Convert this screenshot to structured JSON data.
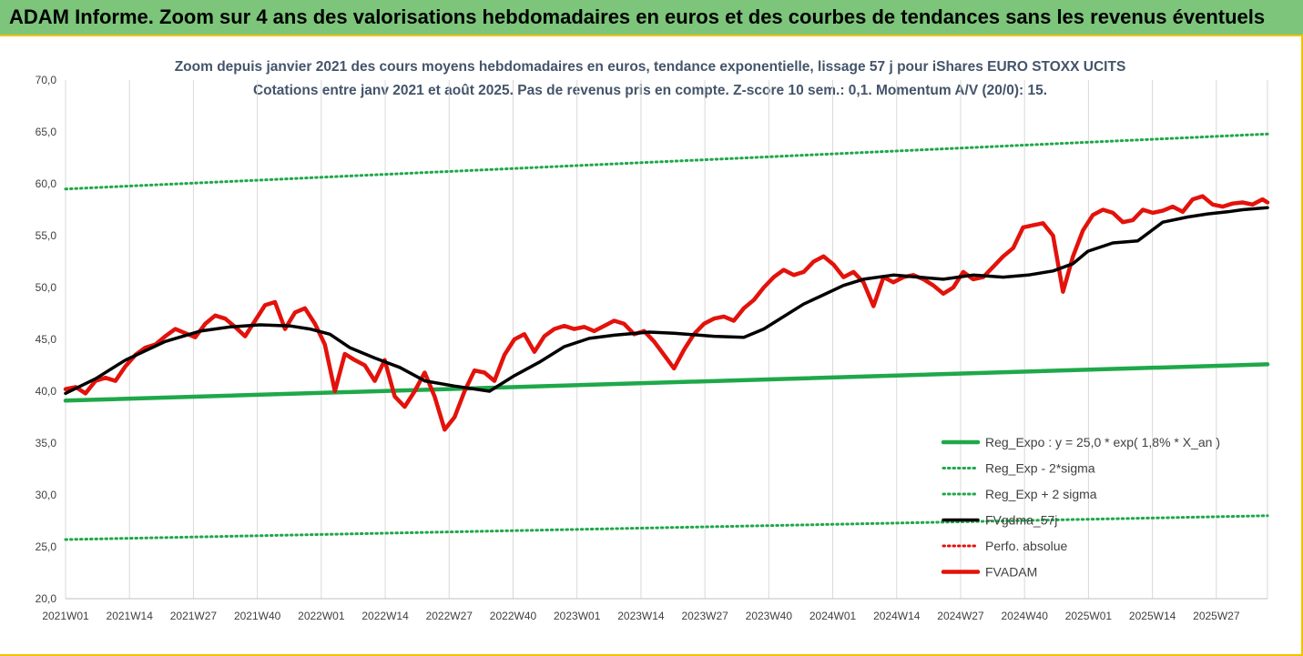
{
  "banner": {
    "title": "ADAM Informe. Zoom sur 4 ans des valorisations hebdomadaires en euros et des courbes de tendances sans les revenus éventuels"
  },
  "colors": {
    "banner_bg": "#7cc57a",
    "frame_border": "#f2c200",
    "reg_expo": "#1fa84a",
    "sigma_bands": "#1fa84a",
    "fvadam": "#e3120b",
    "fvgdma": "#000000",
    "perfo": "#e3120b"
  },
  "chart_data": {
    "type": "line",
    "title": "Zoom depuis janvier 2021 des cours moyens hebdomadaires en euros, tendance exponentielle, lissage 57 j pour iShares EURO STOXX UCITS",
    "subtitle": "Cotations entre janv 2021 et août 2025. Pas de revenus pris en compte. Z-score 10 sem.: 0,1. Momentum A/V (20/0): 15.",
    "xlabel": "",
    "ylabel": "",
    "ylim": [
      20,
      70
    ],
    "yticks": [
      "20,0",
      "25,0",
      "30,0",
      "35,0",
      "40,0",
      "45,0",
      "50,0",
      "55,0",
      "60,0",
      "65,0",
      "70,0"
    ],
    "xticks": [
      "2021W01",
      "2021W14",
      "2021W27",
      "2021W40",
      "2022W01",
      "2022W14",
      "2022W27",
      "2022W40",
      "2023W01",
      "2023W14",
      "2023W27",
      "2023W40",
      "2024W01",
      "2024W14",
      "2024W27",
      "2024W40",
      "2025W01",
      "2025W14",
      "2025W27"
    ],
    "x_week_range": [
      0,
      241
    ],
    "grid": "vertical",
    "legend_position": "bottom-right",
    "series": [
      {
        "name": "Reg_Expo : y = 25,0 * exp( 1,8% *  X_an )",
        "style": "solid",
        "x": [
          0,
          241
        ],
        "values": [
          39.1,
          42.6
        ]
      },
      {
        "name": "Reg_Exp - 2*sigma",
        "style": "dotted",
        "x": [
          0,
          241
        ],
        "values": [
          25.7,
          28.0
        ]
      },
      {
        "name": "Reg_Exp + 2 sigma",
        "style": "dotted",
        "x": [
          0,
          241
        ],
        "values": [
          59.5,
          64.8
        ]
      },
      {
        "name": "FVgdma_57j",
        "style": "solid",
        "x": [
          0,
          6,
          12,
          20,
          27,
          33,
          39,
          45,
          49,
          53,
          57,
          62,
          67,
          72,
          78,
          85,
          90,
          95,
          100,
          105,
          110,
          117,
          122,
          130,
          136,
          140,
          144,
          148,
          152,
          156,
          160,
          166,
          171,
          176,
          182,
          188,
          193,
          198,
          202,
          205,
          210,
          215,
          220,
          225,
          229,
          233,
          236,
          241
        ],
        "values": [
          39.8,
          41.2,
          43.0,
          44.8,
          45.8,
          46.2,
          46.4,
          46.3,
          46.0,
          45.5,
          44.2,
          43.2,
          42.3,
          41.0,
          40.5,
          40.0,
          41.5,
          42.8,
          44.3,
          45.1,
          45.4,
          45.7,
          45.6,
          45.3,
          45.2,
          46.0,
          47.2,
          48.4,
          49.3,
          50.2,
          50.8,
          51.2,
          51.0,
          50.8,
          51.2,
          51.0,
          51.2,
          51.6,
          52.3,
          53.5,
          54.3,
          54.5,
          56.3,
          56.8,
          57.1,
          57.3,
          57.5,
          57.7
        ]
      },
      {
        "name": "Perfo. absolue",
        "style": "dotted",
        "x": [],
        "values": []
      },
      {
        "name": "FVADAM",
        "style": "solid",
        "x": [
          0,
          2,
          4,
          6,
          8,
          10,
          12,
          14,
          16,
          18,
          20,
          22,
          24,
          26,
          28,
          30,
          32,
          34,
          36,
          38,
          40,
          42,
          44,
          46,
          48,
          50,
          52,
          54,
          56,
          58,
          60,
          62,
          64,
          66,
          68,
          70,
          72,
          74,
          76,
          78,
          80,
          82,
          84,
          86,
          88,
          90,
          92,
          94,
          96,
          98,
          100,
          102,
          104,
          106,
          108,
          110,
          112,
          114,
          116,
          118,
          120,
          122,
          124,
          126,
          128,
          130,
          132,
          134,
          136,
          138,
          140,
          142,
          144,
          146,
          148,
          150,
          152,
          154,
          156,
          158,
          160,
          162,
          164,
          166,
          168,
          170,
          172,
          174,
          176,
          178,
          180,
          182,
          184,
          186,
          188,
          190,
          192,
          194,
          196,
          198,
          200,
          202,
          204,
          206,
          208,
          210,
          212,
          214,
          216,
          218,
          220,
          222,
          224,
          226,
          228,
          230,
          232,
          234,
          236,
          238,
          240,
          241
        ],
        "values": [
          40.2,
          40.4,
          39.8,
          41.0,
          41.3,
          41.0,
          42.4,
          43.5,
          44.2,
          44.5,
          45.3,
          46.0,
          45.6,
          45.2,
          46.5,
          47.3,
          47.0,
          46.2,
          45.3,
          46.8,
          48.3,
          48.6,
          46.0,
          47.6,
          48.0,
          46.5,
          44.5,
          40.0,
          43.6,
          43.0,
          42.5,
          41.0,
          43.0,
          39.5,
          38.5,
          40.0,
          41.8,
          39.5,
          36.3,
          37.5,
          40.0,
          42.0,
          41.8,
          41.0,
          43.5,
          45.0,
          45.5,
          43.8,
          45.3,
          46.0,
          46.3,
          46.0,
          46.2,
          45.8,
          46.3,
          46.8,
          46.5,
          45.5,
          45.8,
          44.8,
          43.5,
          42.2,
          44.0,
          45.5,
          46.5,
          47.0,
          47.2,
          46.8,
          48.0,
          48.8,
          50.0,
          51.0,
          51.7,
          51.2,
          51.5,
          52.5,
          53.0,
          52.2,
          51.0,
          51.5,
          50.5,
          48.2,
          51.0,
          50.5,
          51.0,
          51.2,
          50.8,
          50.2,
          49.4,
          50.0,
          51.5,
          50.8,
          51.0,
          52.0,
          53.0,
          53.8,
          55.8,
          56.0,
          56.2,
          55.0,
          49.6,
          53.0,
          55.5,
          57.0,
          57.5,
          57.2,
          56.3,
          56.5,
          57.5,
          57.2,
          57.4,
          57.8,
          57.3,
          58.5,
          58.8,
          58.0,
          57.8,
          58.1,
          58.2,
          58.0,
          58.5,
          58.2
        ]
      }
    ]
  }
}
